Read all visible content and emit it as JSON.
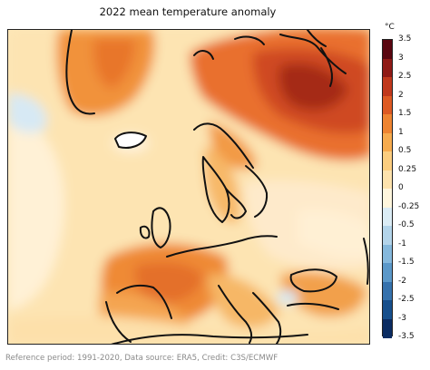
{
  "title": "2022 mean temperature anomaly",
  "colorbar": {
    "unit": "°C",
    "labels": [
      "3.5",
      "3",
      "2.5",
      "2",
      "1.5",
      "1",
      "0.5",
      "0.25",
      "0",
      "-0.25",
      "-0.5",
      "-1",
      "-1.5",
      "-2",
      "-2.5",
      "-3",
      "-3.5"
    ],
    "segment_colors": [
      "#5a0610",
      "#8f1a16",
      "#c0381c",
      "#dd5a23",
      "#ee8431",
      "#f6ab4e",
      "#fbcd7f",
      "#fde2ad",
      "#fff6dd",
      "#dbecf5",
      "#b3d4ea",
      "#85b8dc",
      "#5b98c9",
      "#3672ad",
      "#174f8c",
      "#0b2c62"
    ]
  },
  "caption": "Reference period: 1991-2020, Data source: ERA5, Credit: C3S/ECMWF"
}
